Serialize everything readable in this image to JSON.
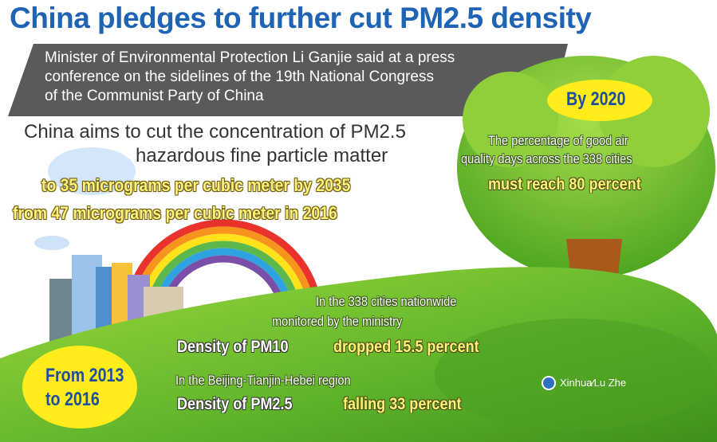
{
  "title": "China pledges to further cut PM2.5 density",
  "banner": {
    "lines": [
      "Minister of Environmental Protection Li Ganjie said at a press",
      "conference on the sidelines of the 19th National Congress",
      "of the Communist Party of China"
    ]
  },
  "aim": {
    "lines": [
      "China aims to cut the concentration of PM2.5",
      "hazardous fine particle matter"
    ],
    "target": "to   35 micrograms per cubic meter by 2035",
    "baseline": "from   47 micrograms per cubic meter in  2016"
  },
  "goal_2020": {
    "badge": "By 2020",
    "lines": [
      "The percentage of good air",
      "quality days across the 338 cities"
    ],
    "highlight": "must reach 80 percent"
  },
  "results": {
    "badge_lines": [
      "From 2013",
      "to 2016"
    ],
    "nationwide_lines": [
      "In the 338 cities nationwide",
      "monitored by the ministry"
    ],
    "pm10_label": "Density of PM10",
    "pm10_value": "dropped 15.5 percent",
    "region": "In the Beijing-Tianjin-Hebei region",
    "pm25_label": "Density of PM2.5",
    "pm25_value": "falling 33 percent"
  },
  "credit": "Xinhua∕Lu Zhe",
  "colors": {
    "title": "#1f63b5",
    "banner": "#5a5a5a",
    "grass": "#7cc734",
    "badge": "#ffec1a",
    "trunk": "#a85a1c"
  }
}
